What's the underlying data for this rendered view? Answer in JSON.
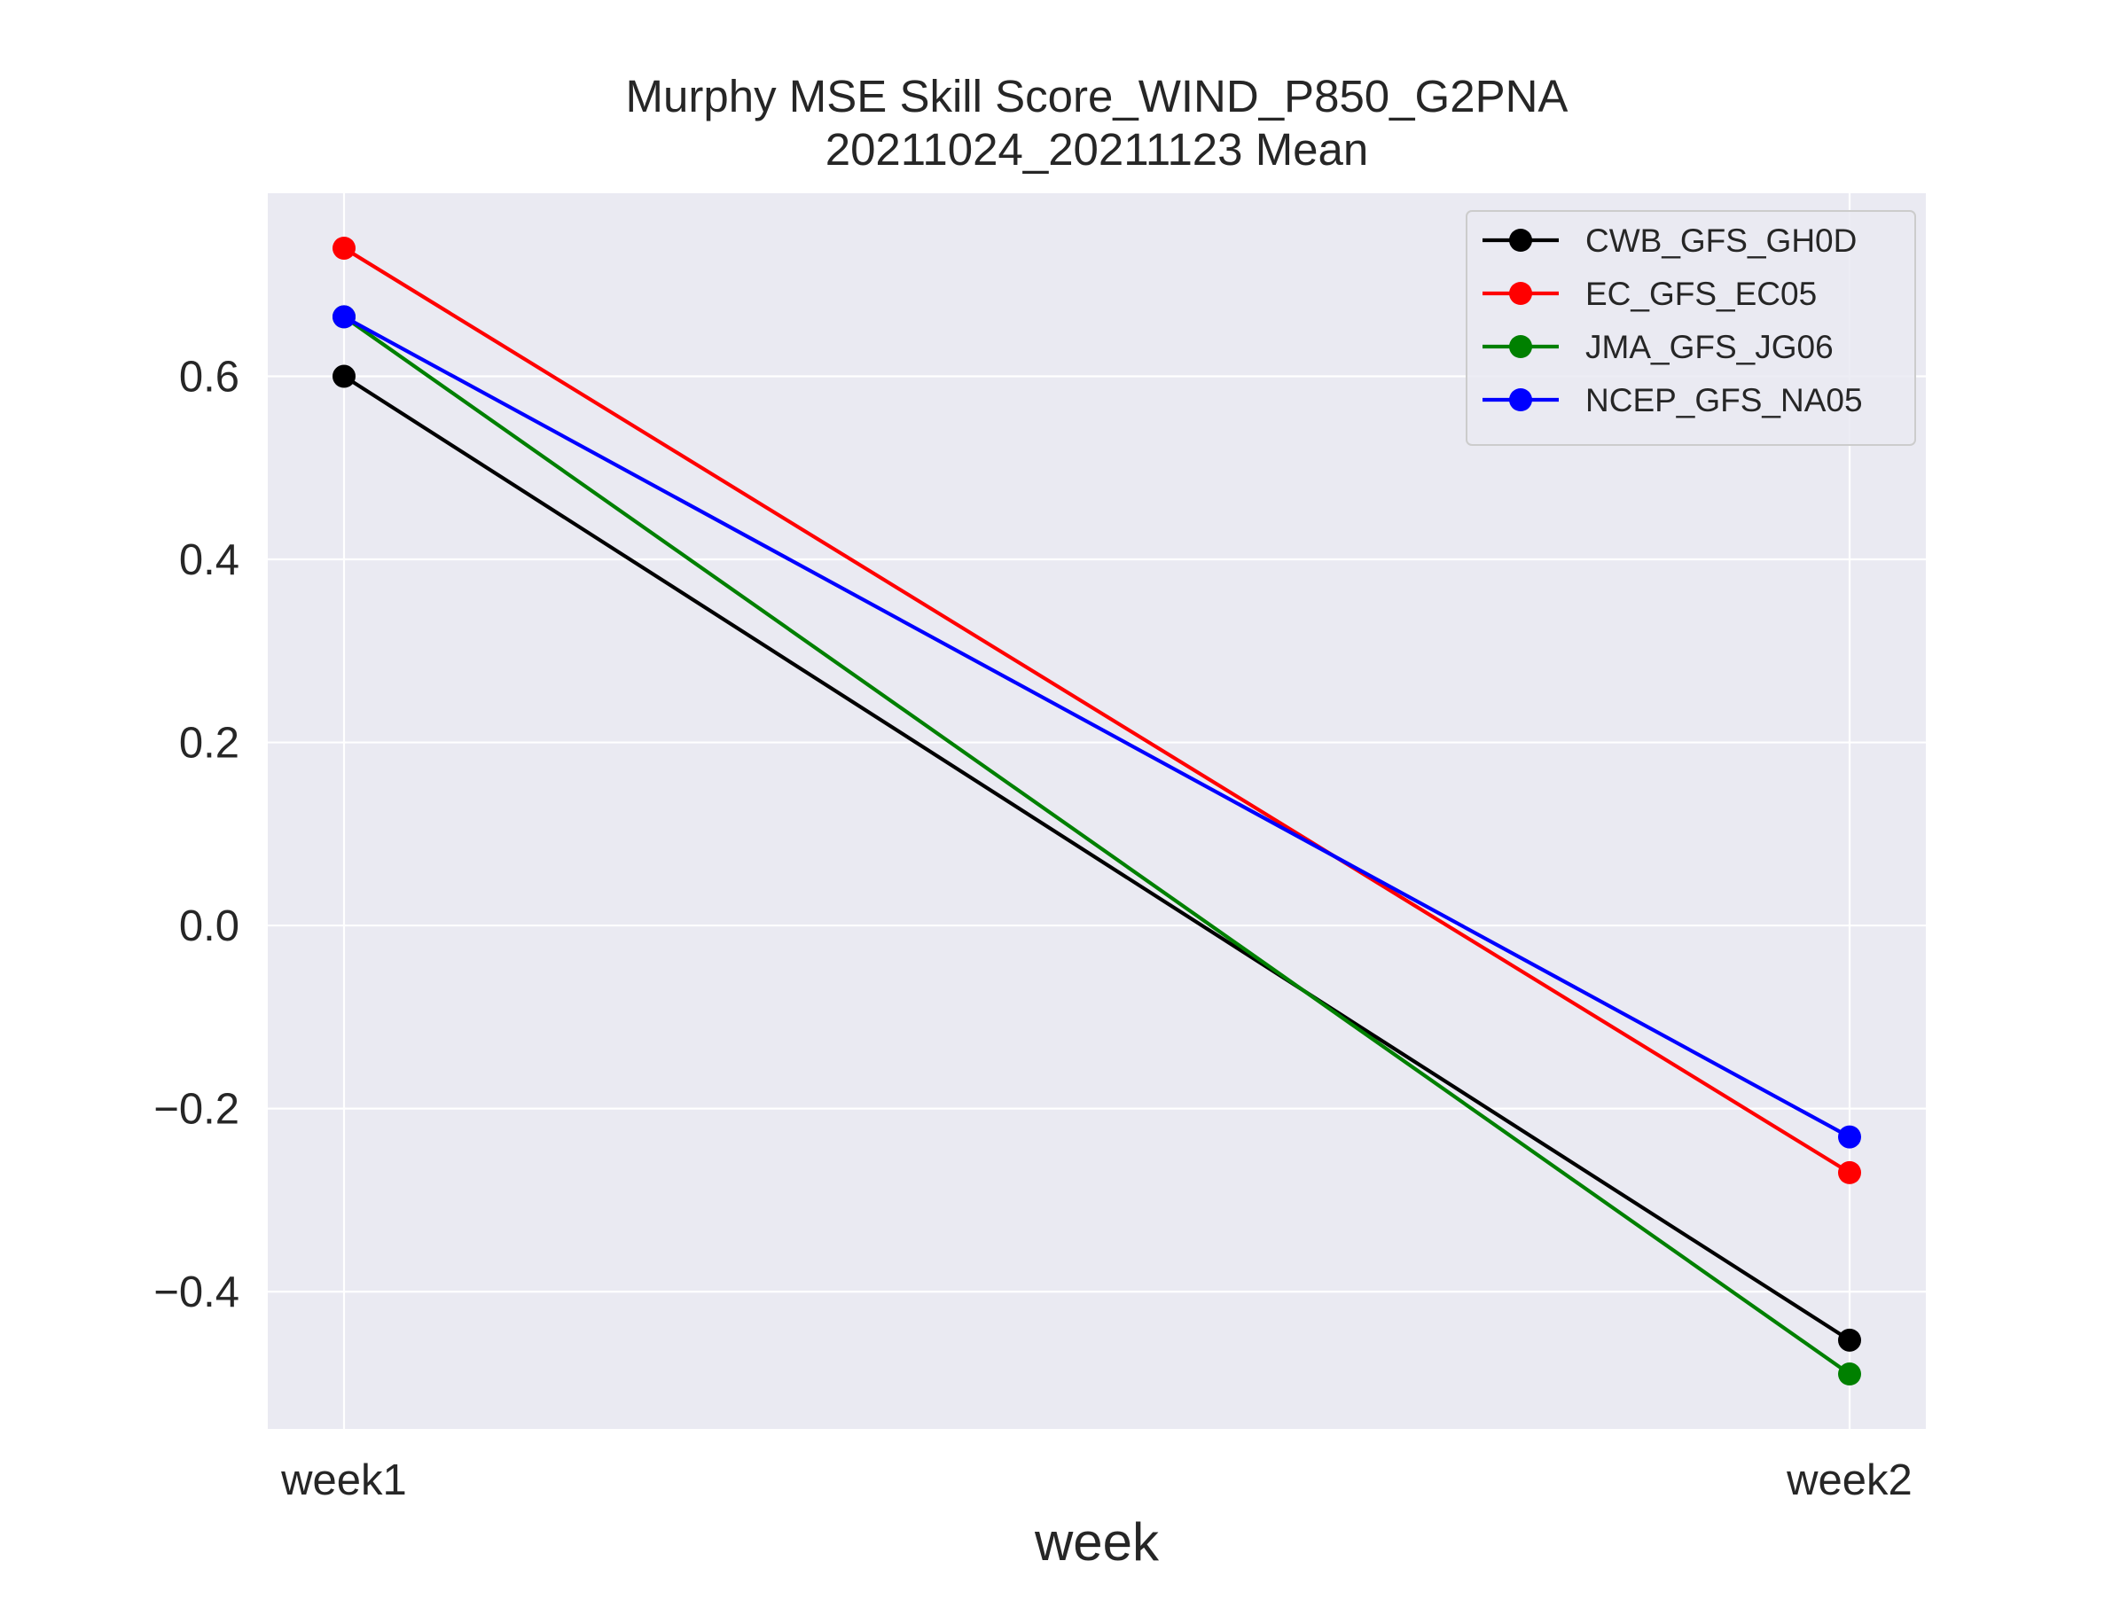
{
  "colors": {
    "plot_background": "#eaeaf2",
    "grid": "#ffffff",
    "text": "#262626",
    "legend_border": "#cccccc"
  },
  "chart_data": {
    "type": "line",
    "title": "Murphy MSE Skill Score_WIND_P850_G2PNA",
    "subtitle": "20211024_20211123 Mean",
    "xlabel": "week",
    "ylabel": "",
    "categories": [
      "week1",
      "week2"
    ],
    "ylim": [
      -0.55,
      0.8
    ],
    "yticks": [
      -0.4,
      -0.2,
      0.0,
      0.2,
      0.4,
      0.6
    ],
    "ytick_labels": [
      "−0.4",
      "−0.2",
      "0.0",
      "0.2",
      "0.4",
      "0.6"
    ],
    "grid": true,
    "legend_position": "top-right",
    "series": [
      {
        "name": "CWB_GFS_GH0D",
        "color": "#000000",
        "values": [
          0.6,
          -0.453
        ]
      },
      {
        "name": "EC_GFS_EC05",
        "color": "#ff0000",
        "values": [
          0.74,
          -0.27
        ]
      },
      {
        "name": "JMA_GFS_JG06",
        "color": "#008000",
        "values": [
          0.665,
          -0.49
        ]
      },
      {
        "name": "NCEP_GFS_NA05",
        "color": "#0000ff",
        "values": [
          0.665,
          -0.231
        ]
      }
    ]
  }
}
